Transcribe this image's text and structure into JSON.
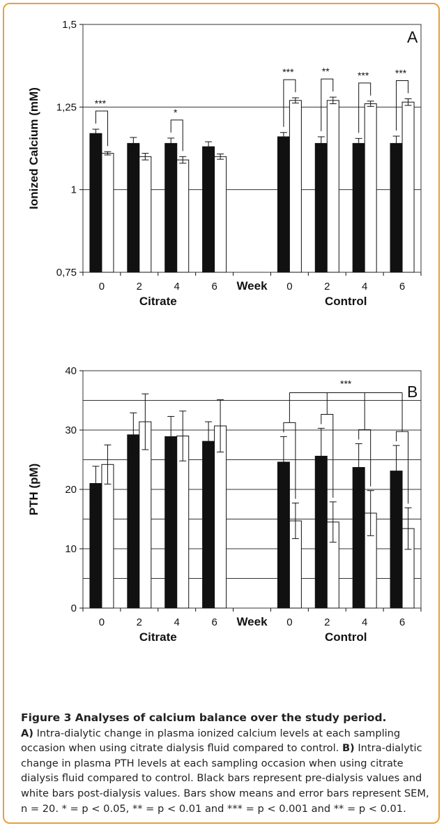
{
  "chart_data": [
    {
      "type": "bar",
      "panel_label": "A",
      "ylabel": "Ionized Calcium (mM)",
      "ylim": [
        0.75,
        1.5
      ],
      "yticks": [
        "0,75",
        "1",
        "1,25",
        "1,5"
      ],
      "ytick_values": [
        0.75,
        1.0,
        1.25,
        1.5
      ],
      "gridlines": [
        1.0,
        1.25
      ],
      "week_label": "Week",
      "groups": [
        {
          "name": "Citrate",
          "categories": [
            "0",
            "2",
            "4",
            "6"
          ],
          "pre": [
            1.17,
            1.14,
            1.14,
            1.13
          ],
          "pre_sem": [
            0.013,
            0.018,
            0.016,
            0.015
          ],
          "post": [
            1.11,
            1.1,
            1.09,
            1.1
          ],
          "post_sem": [
            0.005,
            0.01,
            0.01,
            0.008
          ]
        },
        {
          "name": "Control",
          "categories": [
            "0",
            "2",
            "4",
            "6"
          ],
          "pre": [
            1.16,
            1.14,
            1.14,
            1.14
          ],
          "pre_sem": [
            0.013,
            0.02,
            0.015,
            0.022
          ],
          "post": [
            1.27,
            1.27,
            1.26,
            1.265
          ],
          "post_sem": [
            0.008,
            0.01,
            0.008,
            0.01
          ]
        }
      ],
      "significance": [
        {
          "group": 0,
          "index": 0,
          "label": "***"
        },
        {
          "group": 0,
          "index": 2,
          "label": "*"
        },
        {
          "group": 1,
          "index": 0,
          "label": "***"
        },
        {
          "group": 1,
          "index": 1,
          "label": "**"
        },
        {
          "group": 1,
          "index": 2,
          "label": "***"
        },
        {
          "group": 1,
          "index": 3,
          "label": "***"
        }
      ]
    },
    {
      "type": "bar",
      "panel_label": "B",
      "ylabel": "PTH (pM)",
      "ylim": [
        0,
        40
      ],
      "yticks": [
        "0",
        "10",
        "20",
        "30",
        "40"
      ],
      "ytick_values": [
        0,
        10,
        20,
        30,
        40
      ],
      "gridlines": [
        5,
        10,
        15,
        20,
        25,
        30,
        35
      ],
      "week_label": "Week",
      "groups": [
        {
          "name": "Citrate",
          "categories": [
            "0",
            "2",
            "4",
            "6"
          ],
          "pre": [
            21.0,
            29.2,
            28.9,
            28.1
          ],
          "pre_sem": [
            2.9,
            3.7,
            3.4,
            3.3
          ],
          "post": [
            24.2,
            31.4,
            29.0,
            30.7
          ],
          "post_sem": [
            3.3,
            4.7,
            4.2,
            4.4
          ]
        },
        {
          "name": "Control",
          "categories": [
            "0",
            "2",
            "4",
            "6"
          ],
          "pre": [
            24.6,
            25.6,
            23.7,
            23.1
          ],
          "pre_sem": [
            4.3,
            4.7,
            4.0,
            4.3
          ],
          "post": [
            14.7,
            14.5,
            16.0,
            13.4
          ],
          "post_sem": [
            3.0,
            3.4,
            3.8,
            3.5
          ]
        }
      ],
      "overall_significance": "***"
    }
  ],
  "caption": {
    "title": "Figure 3 Analyses of calcium balance over the study period.",
    "a_label": "A)",
    "a_text": " Intra-dialytic change in plasma ionized calcium levels at each sampling occasion when using citrate dialysis fluid compared to control. ",
    "b_label": "B)",
    "b_text": " Intra-dialytic change in plasma PTH levels at each sampling occasion when using citrate dialysis fluid compared to control. Black bars represent pre-dialysis values and white bars post-dialysis values. Bars show means and error bars represent SEM, n = 20. * = p < 0.05, ** = p < 0.01 and *** = p < 0.001 and ** = p < 0.01."
  },
  "colors": {
    "pre_bar": "#111111",
    "post_bar": "#ffffff",
    "frame": "#e8a13a"
  }
}
